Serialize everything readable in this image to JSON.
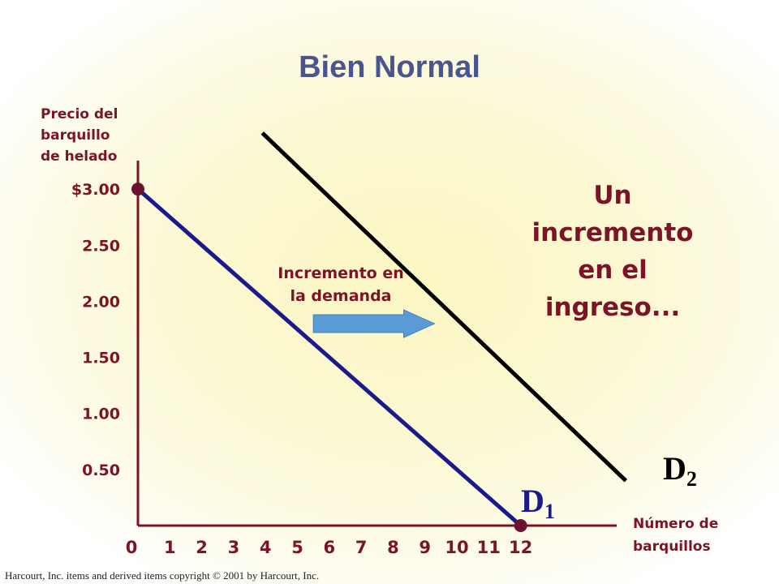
{
  "title": "Bien Normal",
  "chart_data": {
    "type": "line",
    "ylabel": "Precio del barquillo de helado",
    "xlabel": "Número de barquillos",
    "x_ticks": [
      0,
      1,
      2,
      3,
      4,
      5,
      6,
      7,
      8,
      9,
      10,
      11,
      12
    ],
    "y_ticks": [
      {
        "value": 3.0,
        "label": "$3.00"
      },
      {
        "value": 2.5,
        "label": "2.50"
      },
      {
        "value": 2.0,
        "label": "2.00"
      },
      {
        "value": 1.5,
        "label": "1.50"
      },
      {
        "value": 1.0,
        "label": "1.00"
      },
      {
        "value": 0.5,
        "label": "0.50"
      }
    ],
    "xlim": [
      0,
      14.5
    ],
    "ylim": [
      0,
      3.3
    ],
    "series": [
      {
        "name": "D1",
        "color": "#1a1a8a",
        "points": [
          {
            "x": 0,
            "y": 3.0
          },
          {
            "x": 12,
            "y": 0
          }
        ],
        "endpoint_markers": true,
        "marker_color": "#6b1230"
      },
      {
        "name": "D2",
        "color": "#000000",
        "points": [
          {
            "x": 3.9,
            "y": 3.5
          },
          {
            "x": 15.3,
            "y": 0.4
          }
        ]
      }
    ],
    "annotations": {
      "shift": "Incremento en la demanda",
      "income": "Un incremento en el ingreso..."
    },
    "arrow": {
      "color": "#5b9bd5",
      "from": {
        "x": 5.5,
        "y": 1.8
      },
      "to": {
        "x": 9.3,
        "y": 1.8
      }
    },
    "axis_color": "#7a1426",
    "label_color": "#7a1426"
  },
  "labels": {
    "ylabel_lines": [
      "Precio del",
      "barquillo",
      "de helado"
    ],
    "xlabel_lines": [
      "Número de",
      "barquillos"
    ],
    "demand_lines": [
      "Incremento en",
      "la demanda"
    ],
    "income_lines": [
      "Un",
      "incremento",
      "en el",
      "ingreso..."
    ],
    "d1_main": "D",
    "d1_sub": "1",
    "d2_main": "D",
    "d2_sub": "2"
  },
  "copyright": "Harcourt, Inc. items and derived items copyright © 2001 by Harcourt, Inc."
}
